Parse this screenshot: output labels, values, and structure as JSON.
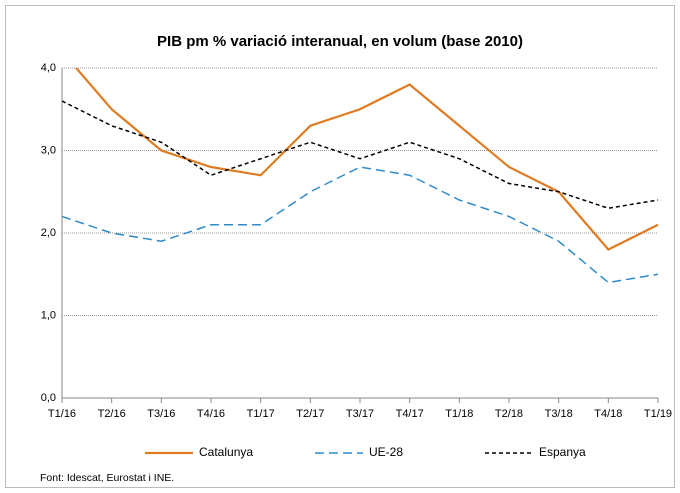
{
  "chart_data": {
    "type": "line",
    "title": "PIB pm % variació interanual, en volum (base 2010)",
    "categories": [
      "T1/16",
      "T2/16",
      "T3/16",
      "T4/16",
      "T1/17",
      "T2/17",
      "T3/17",
      "T4/17",
      "T1/18",
      "T2/18",
      "T3/18",
      "T4/18",
      "T1/19"
    ],
    "series": [
      {
        "name": "Catalunya",
        "color": "#e07b20",
        "dash": "solid",
        "values": [
          4.2,
          3.5,
          3.0,
          2.8,
          2.7,
          3.3,
          3.5,
          3.8,
          3.3,
          2.8,
          2.5,
          1.8,
          2.1
        ]
      },
      {
        "name": "UE-28",
        "color": "#2e8bc9",
        "dash": "long",
        "values": [
          2.2,
          2.0,
          1.9,
          2.1,
          2.1,
          2.5,
          2.8,
          2.7,
          2.4,
          2.2,
          1.9,
          1.4,
          1.5
        ]
      },
      {
        "name": "Espanya",
        "color": "#000000",
        "dash": "short",
        "values": [
          3.6,
          3.3,
          3.1,
          2.7,
          2.9,
          3.1,
          2.9,
          3.1,
          2.9,
          2.6,
          2.5,
          2.3,
          2.4
        ]
      }
    ],
    "ylim": [
      0,
      4
    ],
    "yticks": [
      {
        "value": 0,
        "label": "0,0"
      },
      {
        "value": 1,
        "label": "1,0"
      },
      {
        "value": 2,
        "label": "2,0"
      },
      {
        "value": 3,
        "label": "3,0"
      },
      {
        "value": 4,
        "label": "4,0"
      }
    ],
    "grid": true,
    "source": "Font: Idescat, Eurostat i INE."
  }
}
